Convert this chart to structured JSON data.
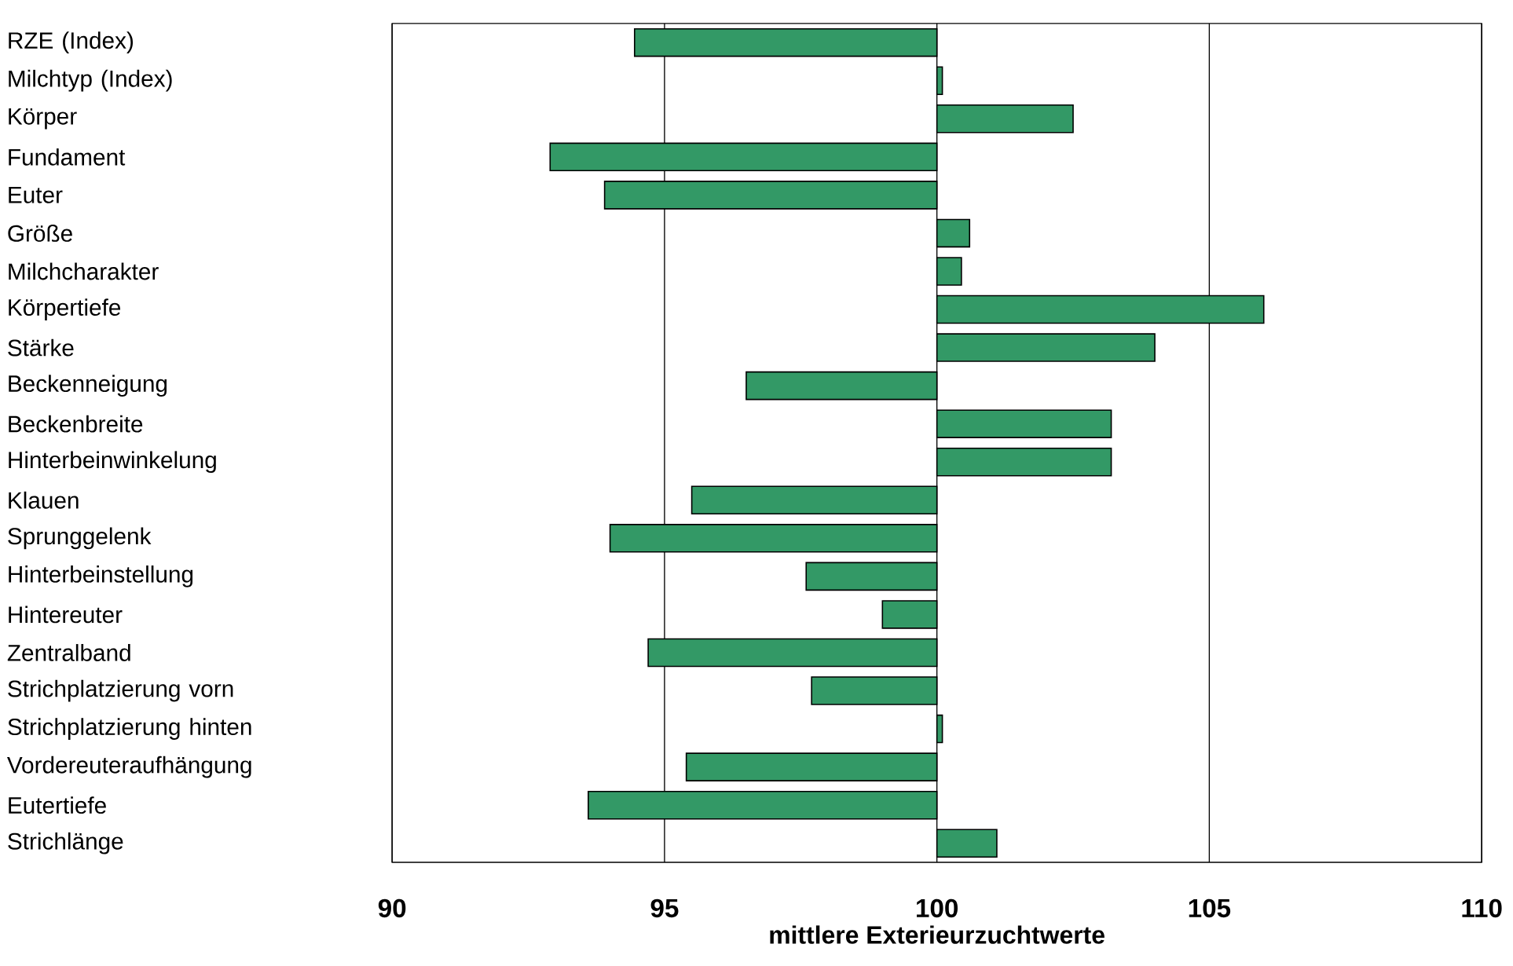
{
  "chart_data": {
    "type": "bar",
    "orientation": "horizontal",
    "xlabel": "mittlere Exterieurzuchtwerte",
    "categories": [
      "RZE (Index)",
      "Milchtyp (Index)",
      "Körper",
      "Fundament",
      "Euter",
      "Größe",
      "Milchcharakter",
      "Körpertiefe",
      "Stärke",
      "Beckenneigung",
      "Beckenbreite",
      "Hinterbeinwinkelung",
      "Klauen",
      "Sprunggelenk",
      "Hinterbeinstellung",
      "Hintereuter",
      "Zentralband",
      "Strichplatzierung vorn",
      "Strichplatzierung hinten",
      "Vordereuteraufhängung",
      "Eutertiefe",
      "Strichlänge"
    ],
    "base": [
      100,
      100,
      100,
      100,
      100,
      100,
      100,
      100,
      100,
      100,
      100,
      100,
      100,
      100,
      100,
      100,
      100,
      100,
      100,
      100,
      100,
      100
    ],
    "values": [
      -5.55,
      0.1,
      2.5,
      -7.1,
      -6.1,
      0.6,
      0.45,
      6.0,
      4.0,
      -3.5,
      3.2,
      3.2,
      -4.5,
      -6.0,
      -2.4,
      -1.0,
      -5.3,
      -2.3,
      0.1,
      -4.6,
      -6.4,
      1.1
    ],
    "color": "#339966",
    "xlim": [
      90,
      110
    ],
    "xticks": [
      90,
      95,
      100,
      105,
      110
    ],
    "grid": "x"
  }
}
